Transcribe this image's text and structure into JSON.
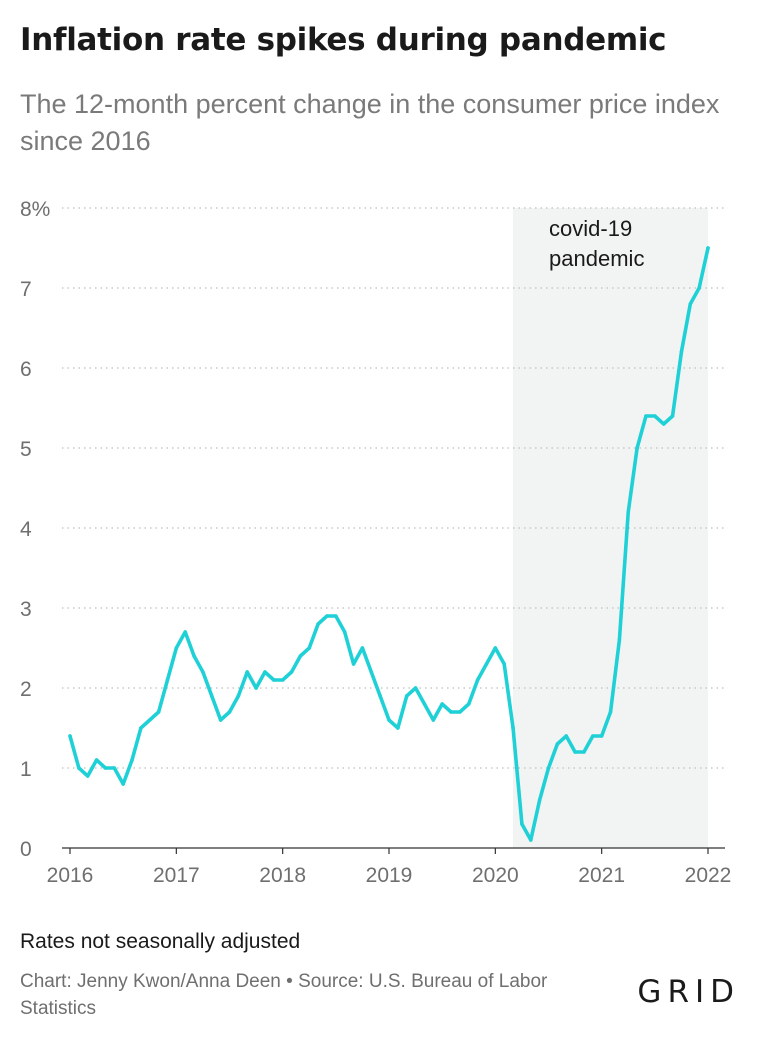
{
  "header": {
    "title": "Inflation rate spikes during pandemic",
    "subtitle": "The 12-month percent change in the consumer price index since 2016"
  },
  "footer": {
    "note": "Rates not seasonally adjusted",
    "credit": "Chart: Jenny Kwon/Anna Deen • Source: U.S. Bureau of Labor Statistics",
    "logo": "GRID"
  },
  "colors": {
    "line": "#1fd1d6",
    "shade": "#f2f4f4",
    "grid": "#c8c8c8",
    "tick_text": "#6f6f6f"
  },
  "chart_data": {
    "type": "line",
    "title": "Inflation rate spikes during pandemic",
    "subtitle": "The 12-month percent change in the consumer price index since 2016",
    "xlabel": "",
    "ylabel": "",
    "xlim": [
      "2016-01",
      "2022-01"
    ],
    "ylim": [
      0,
      8
    ],
    "y_ticks": [
      0,
      1,
      2,
      3,
      4,
      5,
      6,
      7,
      8
    ],
    "y_tick_labels": [
      "0",
      "1",
      "2",
      "3",
      "4",
      "5",
      "6",
      "7",
      "8%"
    ],
    "x_ticks": [
      "2016-01",
      "2017-01",
      "2018-01",
      "2019-01",
      "2020-01",
      "2021-01",
      "2022-01"
    ],
    "x_tick_labels": [
      "2016",
      "2017",
      "2018",
      "2019",
      "2020",
      "2021",
      "2022"
    ],
    "grid": true,
    "legend": "none",
    "shaded_region": {
      "start": "2020-03",
      "end": "2022-01",
      "label_lines": [
        "covid-19",
        "pandemic"
      ]
    },
    "series": [
      {
        "x": [
          "2016-01",
          "2016-02",
          "2016-03",
          "2016-04",
          "2016-05",
          "2016-06",
          "2016-07",
          "2016-08",
          "2016-09",
          "2016-10",
          "2016-11",
          "2016-12",
          "2017-01",
          "2017-02",
          "2017-03",
          "2017-04",
          "2017-05",
          "2017-06",
          "2017-07",
          "2017-08",
          "2017-09",
          "2017-10",
          "2017-11",
          "2017-12",
          "2018-01",
          "2018-02",
          "2018-03",
          "2018-04",
          "2018-05",
          "2018-06",
          "2018-07",
          "2018-08",
          "2018-09",
          "2018-10",
          "2018-11",
          "2018-12",
          "2019-01",
          "2019-02",
          "2019-03",
          "2019-04",
          "2019-05",
          "2019-06",
          "2019-07",
          "2019-08",
          "2019-09",
          "2019-10",
          "2019-11",
          "2019-12",
          "2020-01",
          "2020-02",
          "2020-03",
          "2020-04",
          "2020-05",
          "2020-06",
          "2020-07",
          "2020-08",
          "2020-09",
          "2020-10",
          "2020-11",
          "2020-12",
          "2021-01",
          "2021-02",
          "2021-03",
          "2021-04",
          "2021-05",
          "2021-06",
          "2021-07",
          "2021-08",
          "2021-09",
          "2021-10",
          "2021-11",
          "2021-12",
          "2022-01"
        ],
        "y": [
          1.4,
          1.0,
          0.9,
          1.1,
          1.0,
          1.0,
          0.8,
          1.1,
          1.5,
          1.6,
          1.7,
          2.1,
          2.5,
          2.7,
          2.4,
          2.2,
          1.9,
          1.6,
          1.7,
          1.9,
          2.2,
          2.0,
          2.2,
          2.1,
          2.1,
          2.2,
          2.4,
          2.5,
          2.8,
          2.9,
          2.9,
          2.7,
          2.3,
          2.5,
          2.2,
          1.9,
          1.6,
          1.5,
          1.9,
          2.0,
          1.8,
          1.6,
          1.8,
          1.7,
          1.7,
          1.8,
          2.1,
          2.3,
          2.5,
          2.3,
          1.5,
          0.3,
          0.1,
          0.6,
          1.0,
          1.3,
          1.4,
          1.2,
          1.2,
          1.4,
          1.4,
          1.7,
          2.6,
          4.2,
          5.0,
          5.4,
          5.4,
          5.3,
          5.4,
          6.2,
          6.8,
          7.0,
          7.5
        ]
      }
    ]
  }
}
